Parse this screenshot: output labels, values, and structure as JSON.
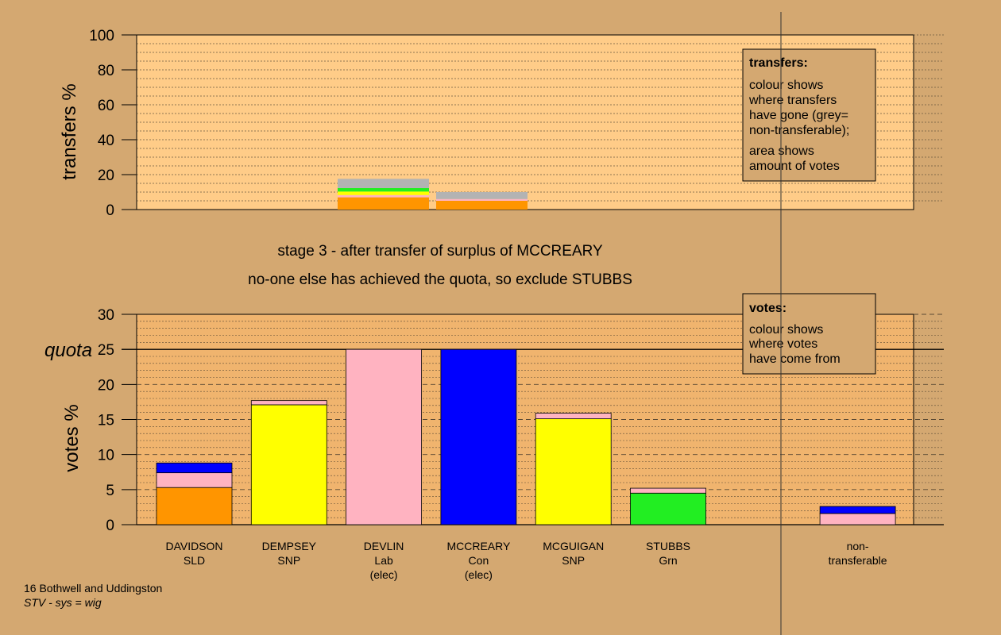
{
  "chart_data": [
    {
      "type": "bar",
      "stacked": true,
      "ylabel": "transfers %",
      "ylim": [
        0,
        100
      ],
      "yticks": [
        0,
        20,
        40,
        60,
        80,
        100
      ],
      "background": "#ffcc88",
      "legend": {
        "title": "transfers:",
        "lines": [
          "colour shows",
          "where transfers",
          "have gone (grey=",
          "non-transferable);"
        ],
        "lines2": [
          "area shows",
          "amount of votes"
        ],
        "placement": "top-right"
      },
      "bars": [
        {
          "source": "DEVLIN",
          "segments": [
            {
              "to": "DAVIDSON",
              "value": 7.0,
              "color": "#ff9500"
            },
            {
              "to": "STUBBS",
              "value": 1.3,
              "color": "#ffb3c1"
            },
            {
              "to": "DEMPSEY",
              "value": 2.0,
              "color": "#ffff00"
            },
            {
              "to": "STUBBS",
              "value": 2.0,
              "color": "#22ee22"
            },
            {
              "to": "non-transferable",
              "value": 5.3,
              "color": "#b3b3b3"
            }
          ]
        },
        {
          "source": "MCCREARY",
          "segments": [
            {
              "to": "DAVIDSON",
              "value": 5.0,
              "color": "#ff9500"
            },
            {
              "to": "DEVLIN",
              "value": 1.0,
              "color": "#ffb3c1"
            },
            {
              "to": "non-transferable",
              "value": 4.0,
              "color": "#b3b3b3"
            }
          ]
        }
      ]
    },
    {
      "type": "bar",
      "stacked": true,
      "ylabel": "votes %",
      "ylim": [
        0,
        30
      ],
      "yticks": [
        0,
        5,
        10,
        15,
        20,
        25,
        30
      ],
      "quota": 25,
      "quota_label": "quota",
      "background": "#f0b46e",
      "legend": {
        "title": "votes:",
        "lines": [
          "colour shows",
          "where votes",
          "have come from"
        ],
        "placement": "top-right"
      },
      "categories": [
        {
          "name": "DAVIDSON",
          "party": "SLD",
          "note": ""
        },
        {
          "name": "DEMPSEY",
          "party": "SNP",
          "note": ""
        },
        {
          "name": "DEVLIN",
          "party": "Lab",
          "note": "(elec)"
        },
        {
          "name": "MCCREARY",
          "party": "Con",
          "note": "(elec)"
        },
        {
          "name": "MCGUIGAN",
          "party": "SNP",
          "note": ""
        },
        {
          "name": "STUBBS",
          "party": "Grn",
          "note": ""
        },
        {
          "name": "",
          "party": "",
          "note": ""
        },
        {
          "name": "non-",
          "party": "transferable",
          "note": ""
        }
      ],
      "stacks": [
        [
          {
            "value": 5.3,
            "color": "#ff9500"
          },
          {
            "value": 2.1,
            "color": "#ffb3c1"
          },
          {
            "value": 1.4,
            "color": "#0000ff"
          }
        ],
        [
          {
            "value": 17.1,
            "color": "#ffff00"
          },
          {
            "value": 0.6,
            "color": "#ffb3c1"
          }
        ],
        [
          {
            "value": 25.0,
            "color": "#ffb3c1"
          }
        ],
        [
          {
            "value": 25.0,
            "color": "#0000ff"
          }
        ],
        [
          {
            "value": 15.1,
            "color": "#ffff00"
          },
          {
            "value": 0.8,
            "color": "#ffb3c1"
          }
        ],
        [
          {
            "value": 4.5,
            "color": "#22ee22"
          },
          {
            "value": 0.7,
            "color": "#ffb3c1"
          }
        ],
        [],
        [
          {
            "value": 1.6,
            "color": "#ffb3c1"
          },
          {
            "value": 1.0,
            "color": "#0000ff"
          }
        ]
      ]
    }
  ],
  "headings": {
    "line1": "stage 3 - after transfer of surplus of MCCREARY",
    "line2": "no-one else has achieved the quota, so exclude STUBBS"
  },
  "footer": {
    "line1": "16 Bothwell and Uddingston",
    "line2": "STV - sys = wig"
  }
}
